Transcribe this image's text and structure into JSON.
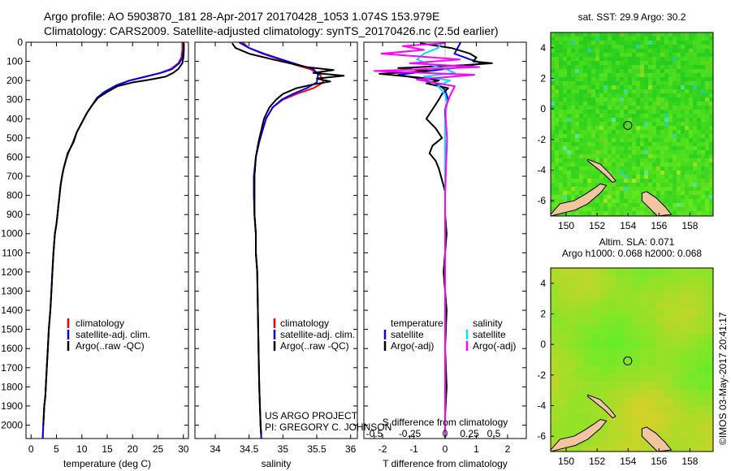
{
  "header": {
    "line1": "Argo profile: AO 5903870_181 28-Apr-2017 20170428_1053 1.074S 153.979E",
    "line2": "Climatology: CARS2009. Satellite-adjusted climatology: synTS_20170426.nc (2.5d earlier)"
  },
  "colors": {
    "clim": "#ff0000",
    "sat": "#0000ff",
    "argo": "#000000",
    "sat_s": "#00e0ff",
    "argo_s": "#ff00ff",
    "land": "#f2c59e"
  },
  "depth_axis": {
    "ticks": [
      0,
      100,
      200,
      300,
      400,
      500,
      600,
      700,
      800,
      900,
      1000,
      1100,
      1200,
      1300,
      1400,
      1500,
      1600,
      1700,
      1800,
      1900,
      2000
    ],
    "ylim": [
      0,
      2070
    ]
  },
  "credit": {
    "line1": "US ARGO PROJECT",
    "line2": "PI: GREGORY C. JOHNSON"
  },
  "timestamp": "©IMOS 03-May-2017 20:41:17",
  "chart_data": [
    {
      "id": "temperature",
      "type": "line",
      "xlabel": "temperature (deg C)",
      "xlim": [
        -1,
        31
      ],
      "xticks": [
        0,
        5,
        10,
        15,
        20,
        25,
        30
      ],
      "legend": {
        "items": [
          "climatology",
          "satellite-adj. clim.",
          "Argo(..raw -QC)"
        ]
      },
      "series": [
        {
          "name": "climatology",
          "color": "#ff0000",
          "x": [
            29.8,
            29.8,
            29.6,
            29.0,
            27.5,
            25.5,
            22.5,
            19.5,
            17.0,
            14.5,
            13.0,
            12.0,
            11.0,
            10.0,
            9.0,
            8.3,
            7.8,
            7.2,
            6.8,
            6.4,
            6.1,
            5.8,
            5.6,
            5.4,
            5.2,
            5.0,
            4.7,
            4.4,
            4.2,
            4.0,
            3.8,
            3.5,
            3.3,
            3.1,
            2.9,
            2.8,
            2.6,
            2.5,
            2.4,
            2.3
          ],
          "y": [
            0,
            40,
            80,
            110,
            140,
            160,
            180,
            200,
            225,
            260,
            290,
            330,
            370,
            420,
            470,
            520,
            550,
            580,
            620,
            660,
            700,
            750,
            800,
            850,
            900,
            950,
            1000,
            1100,
            1200,
            1300,
            1400,
            1500,
            1600,
            1700,
            1800,
            1850,
            1900,
            1950,
            2000,
            2070
          ]
        },
        {
          "name": "satellite-adj. clim.",
          "color": "#0000ff",
          "x": [
            30.0,
            30.0,
            29.8,
            29.2,
            27.8,
            25.6,
            22.6,
            19.4,
            16.8,
            14.4,
            13.0,
            12.0,
            11.0,
            10.0,
            9.0,
            8.3,
            7.8,
            7.2,
            6.8,
            6.4,
            6.1,
            5.8,
            5.6,
            5.4,
            5.2,
            5.0,
            4.7,
            4.4,
            4.2,
            4.0,
            3.8,
            3.5,
            3.3,
            3.1,
            2.9,
            2.8,
            2.6,
            2.5,
            2.4,
            2.3
          ],
          "y": [
            0,
            40,
            80,
            110,
            140,
            160,
            180,
            200,
            225,
            260,
            290,
            330,
            370,
            420,
            470,
            520,
            550,
            580,
            620,
            660,
            700,
            750,
            800,
            850,
            900,
            950,
            1000,
            1100,
            1200,
            1300,
            1400,
            1500,
            1600,
            1700,
            1800,
            1850,
            1900,
            1950,
            2000,
            2070
          ]
        },
        {
          "name": "Argo(..raw -QC)",
          "color": "#000000",
          "x": [
            30.1,
            30.1,
            30.0,
            29.8,
            29.0,
            28.0,
            26.5,
            23.5,
            20.0,
            17.0,
            15.0,
            13.2,
            12.0,
            11.0,
            10.0,
            9.0,
            8.4,
            7.8,
            7.3,
            6.8,
            6.4,
            6.1,
            5.8,
            5.6,
            5.4,
            5.2,
            5.0,
            4.7,
            4.4,
            4.2,
            4.0,
            3.8,
            3.5,
            3.3,
            3.1,
            2.9,
            2.8,
            2.6,
            2.5,
            2.4
          ],
          "y": [
            5,
            40,
            80,
            110,
            140,
            160,
            180,
            195,
            210,
            230,
            260,
            290,
            330,
            370,
            420,
            470,
            520,
            550,
            580,
            620,
            660,
            700,
            750,
            800,
            850,
            900,
            950,
            1000,
            1100,
            1200,
            1300,
            1400,
            1500,
            1600,
            1700,
            1800,
            1850,
            1900,
            1950,
            2000
          ]
        }
      ]
    },
    {
      "id": "salinity",
      "type": "line",
      "xlabel": "salinity",
      "xlim": [
        33.7,
        36.1
      ],
      "xticks": [
        34,
        34.5,
        35,
        35.5,
        36
      ],
      "legend": {
        "items": [
          "climatology",
          "satellite-adj. clim.",
          "Argo(..raw -QC)"
        ]
      },
      "series": [
        {
          "name": "climatology",
          "color": "#ff0000",
          "x": [
            34.4,
            34.5,
            34.7,
            34.95,
            35.2,
            35.4,
            35.55,
            35.6,
            35.45,
            35.2,
            35.0,
            34.85,
            34.75,
            34.7,
            34.65,
            34.6,
            34.58,
            34.58,
            34.58,
            34.6,
            34.6,
            34.62,
            34.63,
            34.64,
            34.65,
            34.66,
            34.67,
            34.68
          ],
          "y": [
            0,
            30,
            60,
            90,
            120,
            140,
            170,
            210,
            240,
            270,
            300,
            340,
            400,
            460,
            520,
            600,
            700,
            800,
            900,
            1000,
            1100,
            1200,
            1400,
            1600,
            1800,
            1900,
            2000,
            2070
          ]
        },
        {
          "name": "satellite-adj. clim.",
          "color": "#0000ff",
          "x": [
            34.35,
            34.5,
            34.72,
            34.98,
            35.25,
            35.45,
            35.52,
            35.5,
            35.35,
            35.15,
            34.98,
            34.85,
            34.75,
            34.7,
            34.65,
            34.6,
            34.57,
            34.57,
            34.58,
            34.6,
            34.6,
            34.62,
            34.63,
            34.64,
            34.65,
            34.66,
            34.67,
            34.68
          ],
          "y": [
            0,
            30,
            60,
            90,
            120,
            140,
            170,
            210,
            240,
            270,
            300,
            340,
            400,
            460,
            520,
            600,
            700,
            800,
            900,
            1000,
            1100,
            1200,
            1400,
            1600,
            1800,
            1900,
            2000,
            2070
          ]
        },
        {
          "name": "Argo(..raw -QC)",
          "color": "#000000",
          "x": [
            34.25,
            34.3,
            34.5,
            34.85,
            35.1,
            35.35,
            35.75,
            35.45,
            35.9,
            35.5,
            35.7,
            35.45,
            35.2,
            35.0,
            34.9,
            34.8,
            34.72,
            34.68,
            34.64,
            34.6,
            34.58,
            34.58,
            34.58,
            34.6,
            34.6,
            34.62,
            34.63,
            34.64,
            34.65,
            34.66,
            34.67,
            34.68
          ],
          "y": [
            5,
            30,
            60,
            90,
            110,
            130,
            145,
            160,
            175,
            190,
            205,
            220,
            240,
            270,
            300,
            340,
            400,
            460,
            520,
            600,
            700,
            800,
            900,
            1000,
            1100,
            1200,
            1400,
            1600,
            1800,
            1900,
            2000,
            2050
          ]
        }
      ]
    },
    {
      "id": "differences",
      "type": "line",
      "xlabel": "T difference from climatology",
      "xlabel_top": "S difference from climatology",
      "xlim": [
        -2.6,
        2.6
      ],
      "xticks": [
        -2,
        -1,
        0,
        1,
        2
      ],
      "sticks": [
        -0.5,
        -0.25,
        0,
        0.25,
        0.5
      ],
      "sticks_label": [
        "-0.5",
        "-0.25",
        "0",
        "0.25",
        "0.5"
      ],
      "legend": {
        "col1": [
          "temperature",
          "satellite",
          "Argo(-adj)"
        ],
        "col2": [
          "salinity",
          "satellite",
          "Argo(-adj)"
        ]
      },
      "series": [
        {
          "name": "T satellite",
          "color": "#0000ff",
          "x": [
            0.5,
            0.4,
            0.3,
            0.8,
            1.2,
            0.5,
            -0.5,
            -1.5,
            -0.8,
            -0.2,
            0.0,
            0.1,
            0.0,
            0.0,
            0.0,
            0.0,
            0.0,
            0.0,
            0.0,
            0.0
          ],
          "y": [
            0,
            30,
            60,
            90,
            110,
            130,
            150,
            170,
            190,
            220,
            250,
            300,
            350,
            400,
            500,
            700,
            1000,
            1400,
            1800,
            2070
          ]
        },
        {
          "name": "T Argo(-adj)",
          "color": "#000000",
          "x": [
            -0.8,
            0.2,
            0.8,
            1.0,
            0.9,
            1.5,
            0.6,
            -1.5,
            -0.5,
            -2.1,
            -0.8,
            -0.2,
            -0.6,
            0.1,
            -0.1,
            -0.2,
            -0.4,
            -0.6,
            -0.3,
            -0.1,
            -0.4,
            -0.5,
            -0.3,
            -0.2,
            -0.1,
            0.0,
            0.0,
            0.05,
            -0.05,
            0.05,
            0.0,
            0.05,
            0.0,
            0.0
          ],
          "y": [
            5,
            30,
            60,
            80,
            100,
            110,
            120,
            135,
            150,
            165,
            185,
            200,
            215,
            240,
            270,
            300,
            350,
            400,
            450,
            500,
            540,
            580,
            620,
            660,
            720,
            780,
            900,
            1000,
            1200,
            1400,
            1600,
            1800,
            1950,
            2050
          ]
        },
        {
          "name": "S satellite",
          "color": "#00e0ff",
          "x": [
            -0.02,
            -0.05,
            -0.15,
            -0.2,
            -0.1,
            0.0,
            0.1,
            -0.15,
            0.05,
            -0.05,
            0.0,
            0.02,
            0.0,
            0.0,
            0.0,
            0.0,
            0.0,
            0.0
          ],
          "y": [
            0,
            30,
            60,
            90,
            120,
            140,
            160,
            180,
            200,
            230,
            270,
            320,
            400,
            600,
            900,
            1300,
            1700,
            2070
          ]
        },
        {
          "name": "S Argo(-adj)",
          "color": "#ff00ff",
          "x": [
            0.0,
            -0.3,
            -0.15,
            -0.45,
            0.15,
            -0.25,
            0.35,
            -0.5,
            0.3,
            -0.2,
            0.1,
            0.05,
            0.0,
            0.02,
            0.0,
            0.0,
            0.0,
            0.0
          ],
          "y": [
            5,
            20,
            40,
            60,
            90,
            110,
            130,
            150,
            170,
            195,
            230,
            280,
            350,
            500,
            800,
            1200,
            1600,
            2050
          ]
        }
      ]
    }
  ],
  "maps": [
    {
      "id": "sst_map",
      "title": "sat. SST: 29.9 Argo: 30.2",
      "xlim": [
        149,
        159.5
      ],
      "ylim": [
        -7,
        5
      ],
      "xticks": [
        150,
        152,
        154,
        156,
        158
      ],
      "yticks": [
        -6,
        -4,
        -2,
        0,
        2,
        4
      ],
      "float_marker": {
        "lon": 153.979,
        "lat": -1.074
      }
    },
    {
      "id": "sla_map",
      "title_line1": "Altim. SLA: 0.071",
      "title_line2": "Argo h1000: 0.068 h2000: 0.068",
      "xlim": [
        149,
        159.5
      ],
      "ylim": [
        -7,
        5
      ],
      "xticks": [
        150,
        152,
        154,
        156,
        158
      ],
      "yticks": [
        -6,
        -4,
        -2,
        0,
        2,
        4
      ],
      "float_marker": {
        "lon": 153.979,
        "lat": -1.074
      }
    }
  ]
}
